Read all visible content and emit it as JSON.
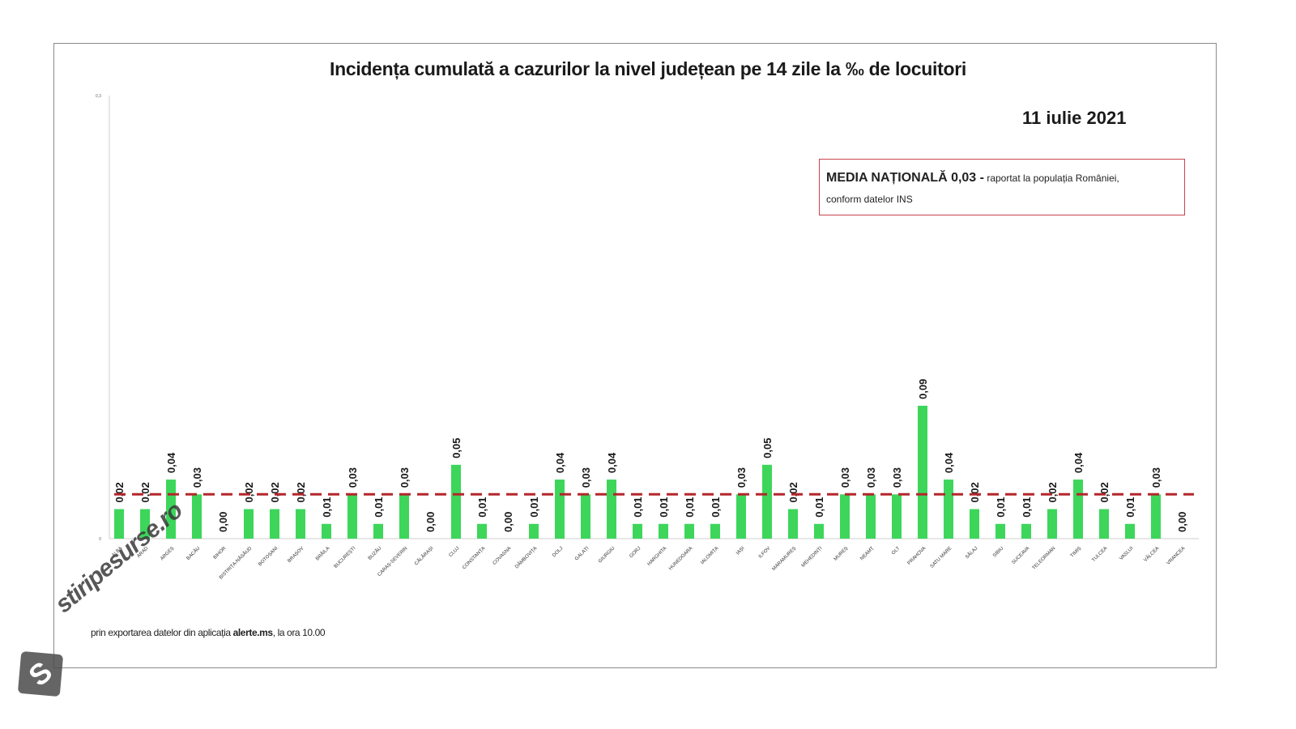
{
  "chart_data": {
    "type": "bar",
    "title": "Incidența cumulată a cazurilor la nivel județean pe 14 zile  la ‰ de locuitori",
    "subtitle": "11 iulie 2021",
    "ylim": [
      0,
      0.3
    ],
    "y_ticks": [
      "0",
      "0,3"
    ],
    "grid": false,
    "categories": [
      "ALBA",
      "ARAD",
      "ARGEȘ",
      "BACĂU",
      "BIHOR",
      "BISTRIȚA-NĂSĂUD",
      "BOTOȘANI",
      "BRAȘOV",
      "BRĂILA",
      "BUCUREȘTI",
      "BUZĂU",
      "CARAȘ-SEVERIN",
      "CĂLĂRAȘI",
      "CLUJ",
      "CONSTANȚA",
      "COVASNA",
      "DÂMBOVIȚA",
      "DOLJ",
      "GALAȚI",
      "GIURGIU",
      "GORJ",
      "HARGHITA",
      "HUNEDOARA",
      "IALOMIȚA",
      "IAȘI",
      "ILFOV",
      "MARAMUREȘ",
      "MEHEDINȚI",
      "MUREȘ",
      "NEAMȚ",
      "OLT",
      "PRAHOVA",
      "SATU MARE",
      "SĂLAJ",
      "SIBIU",
      "SUCEAVA",
      "TELEORMAN",
      "TIMIȘ",
      "TULCEA",
      "VASLUI",
      "VÂLCEA",
      "VRANCEA"
    ],
    "values": [
      0.02,
      0.02,
      0.04,
      0.03,
      0.0,
      0.02,
      0.02,
      0.02,
      0.01,
      0.03,
      0.01,
      0.03,
      0.0,
      0.05,
      0.01,
      0.0,
      0.01,
      0.04,
      0.03,
      0.04,
      0.01,
      0.01,
      0.01,
      0.01,
      0.03,
      0.05,
      0.02,
      0.01,
      0.03,
      0.03,
      0.03,
      0.09,
      0.04,
      0.02,
      0.01,
      0.01,
      0.02,
      0.04,
      0.02,
      0.01,
      0.03,
      0.0
    ],
    "data_labels": [
      "0,02",
      "0,02",
      "0,04",
      "0,03",
      "0,00",
      "0,02",
      "0,02",
      "0,02",
      "0,01",
      "0,03",
      "0,01",
      "0,03",
      "0,00",
      "0,05",
      "0,01",
      "0,00",
      "0,01",
      "0,04",
      "0,03",
      "0,04",
      "0,01",
      "0,01",
      "0,01",
      "0,01",
      "0,03",
      "0,05",
      "0,02",
      "0,01",
      "0,03",
      "0,03",
      "0,03",
      "0,09",
      "0,04",
      "0,02",
      "0,01",
      "0,01",
      "0,02",
      "0,04",
      "0,02",
      "0,01",
      "0,03",
      "0,00"
    ],
    "reference_line": {
      "value": 0.03
    },
    "colors": {
      "bar": "#3dd65b",
      "reference_line": "#b3262c",
      "text": "#1a1a1a"
    }
  },
  "media_box": {
    "bold": "MEDIA NAȚIONALĂ 0,03 -",
    "text": " raportat la populația României,",
    "line2": "conform datelor INS"
  },
  "footnote": {
    "prefix": "prin exportarea datelor din aplicația ",
    "app": "alerte.ms",
    "suffix": ", la ora 10.00"
  },
  "watermark": {
    "text": "stiripesurse.ro",
    "icon": "s-logo-icon"
  }
}
